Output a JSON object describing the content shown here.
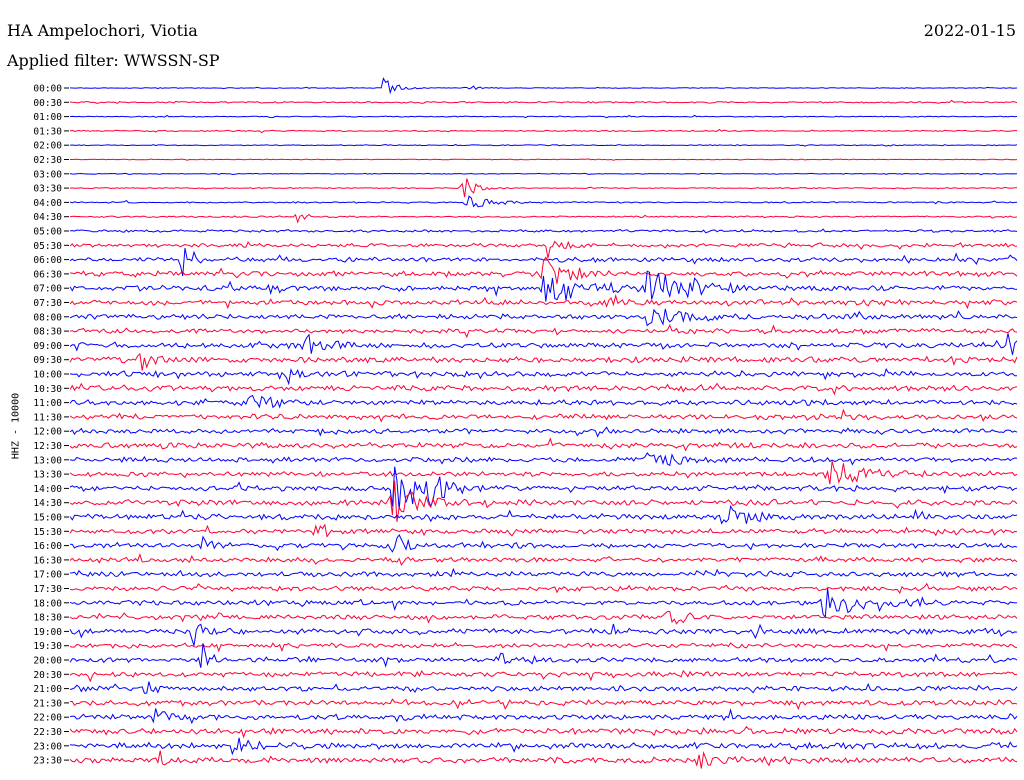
{
  "header": {
    "station": "HA Ampelochori, Viotia",
    "filter": "Applied filter: WWSSN-SP",
    "date": "2022-01-15"
  },
  "colors": {
    "even": "#0000ff",
    "odd": "#ff0033"
  },
  "chart_data": {
    "type": "line",
    "ylabel": "HHZ - 10000",
    "row_labels": [
      "00:00",
      "00:30",
      "01:00",
      "01:30",
      "02:00",
      "02:30",
      "03:00",
      "03:30",
      "04:00",
      "04:30",
      "05:00",
      "05:30",
      "06:00",
      "06:30",
      "07:00",
      "07:30",
      "08:00",
      "08:30",
      "09:00",
      "09:30",
      "10:00",
      "10:30",
      "11:00",
      "11:30",
      "12:00",
      "12:30",
      "13:00",
      "13:30",
      "14:00",
      "14:30",
      "15:00",
      "15:30",
      "16:00",
      "16:30",
      "17:00",
      "17:30",
      "18:00",
      "18:30",
      "19:00",
      "19:30",
      "20:00",
      "20:30",
      "21:00",
      "21:30",
      "22:00",
      "22:30",
      "23:00",
      "23:30"
    ],
    "noise": [
      0.3,
      0.6,
      0.4,
      0.5,
      0.4,
      0.3,
      0.3,
      0.4,
      0.6,
      0.6,
      1.0,
      1.6,
      1.8,
      2.2,
      2.2,
      2.2,
      2.0,
      2.0,
      2.2,
      2.4,
      2.2,
      2.2,
      2.2,
      2.2,
      2.0,
      2.2,
      2.0,
      2.0,
      2.2,
      2.4,
      2.2,
      2.0,
      2.0,
      2.0,
      2.0,
      2.0,
      2.0,
      2.0,
      2.2,
      1.8,
      2.0,
      2.0,
      2.2,
      2.2,
      2.2,
      2.4,
      2.4,
      2.4
    ],
    "events": [
      {
        "row": 0,
        "pos": 0.33,
        "amp": 12,
        "dur": 0.012
      },
      {
        "row": 0,
        "pos": 0.42,
        "amp": 6,
        "dur": 0.006
      },
      {
        "row": 7,
        "pos": 0.415,
        "amp": 16,
        "dur": 0.01
      },
      {
        "row": 8,
        "pos": 0.42,
        "amp": 8,
        "dur": 0.02
      },
      {
        "row": 9,
        "pos": 0.24,
        "amp": 6,
        "dur": 0.01
      },
      {
        "row": 11,
        "pos": 0.5,
        "amp": 20,
        "dur": 0.012
      },
      {
        "row": 12,
        "pos": 0.12,
        "amp": 30,
        "dur": 0.006
      },
      {
        "row": 13,
        "pos": 0.5,
        "amp": 24,
        "dur": 0.02
      },
      {
        "row": 14,
        "pos": 0.5,
        "amp": 18,
        "dur": 0.04
      },
      {
        "row": 14,
        "pos": 0.61,
        "amp": 18,
        "dur": 0.04
      },
      {
        "row": 15,
        "pos": 0.57,
        "amp": 8,
        "dur": 0.01
      },
      {
        "row": 16,
        "pos": 0.61,
        "amp": 14,
        "dur": 0.03
      },
      {
        "row": 18,
        "pos": 0.25,
        "amp": 12,
        "dur": 0.015
      },
      {
        "row": 18,
        "pos": 0.99,
        "amp": 12,
        "dur": 0.01
      },
      {
        "row": 19,
        "pos": 0.075,
        "amp": 14,
        "dur": 0.01
      },
      {
        "row": 20,
        "pos": 0.23,
        "amp": 10,
        "dur": 0.01
      },
      {
        "row": 22,
        "pos": 0.19,
        "amp": 8,
        "dur": 0.02
      },
      {
        "row": 26,
        "pos": 0.61,
        "amp": 10,
        "dur": 0.03
      },
      {
        "row": 27,
        "pos": 0.8,
        "amp": 16,
        "dur": 0.035
      },
      {
        "row": 28,
        "pos": 0.34,
        "amp": 30,
        "dur": 0.02
      },
      {
        "row": 28,
        "pos": 0.38,
        "amp": 12,
        "dur": 0.02
      },
      {
        "row": 29,
        "pos": 0.34,
        "amp": 24,
        "dur": 0.02
      },
      {
        "row": 30,
        "pos": 0.69,
        "amp": 16,
        "dur": 0.02
      },
      {
        "row": 31,
        "pos": 0.26,
        "amp": 14,
        "dur": 0.01
      },
      {
        "row": 32,
        "pos": 0.34,
        "amp": 20,
        "dur": 0.01
      },
      {
        "row": 32,
        "pos": 0.14,
        "amp": 8,
        "dur": 0.01
      },
      {
        "row": 36,
        "pos": 0.79,
        "amp": 16,
        "dur": 0.04
      },
      {
        "row": 37,
        "pos": 0.63,
        "amp": 22,
        "dur": 0.01
      },
      {
        "row": 38,
        "pos": 0.13,
        "amp": 16,
        "dur": 0.008
      },
      {
        "row": 38,
        "pos": 0.57,
        "amp": 10,
        "dur": 0.01
      },
      {
        "row": 40,
        "pos": 0.14,
        "amp": 28,
        "dur": 0.006
      },
      {
        "row": 40,
        "pos": 0.45,
        "amp": 8,
        "dur": 0.02
      },
      {
        "row": 42,
        "pos": 0.08,
        "amp": 10,
        "dur": 0.008
      },
      {
        "row": 44,
        "pos": 0.09,
        "amp": 8,
        "dur": 0.01
      },
      {
        "row": 46,
        "pos": 0.17,
        "amp": 10,
        "dur": 0.02
      },
      {
        "row": 47,
        "pos": 0.66,
        "amp": 12,
        "dur": 0.015
      },
      {
        "row": 47,
        "pos": 0.09,
        "amp": 12,
        "dur": 0.01
      }
    ]
  }
}
